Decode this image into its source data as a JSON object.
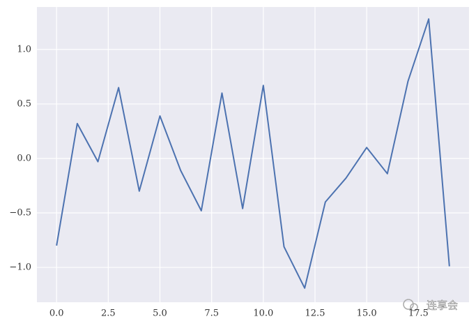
{
  "chart_data": {
    "type": "line",
    "x": [
      0,
      1,
      2,
      3,
      4,
      5,
      6,
      7,
      8,
      9,
      10,
      11,
      12,
      13,
      14,
      15,
      16,
      17,
      18,
      19
    ],
    "series": [
      {
        "color": "#4c72b0",
        "values": [
          -0.8,
          0.32,
          -0.03,
          0.65,
          -0.3,
          0.39,
          -0.11,
          -0.48,
          0.6,
          -0.46,
          0.67,
          -0.81,
          -1.19,
          -0.4,
          -0.18,
          0.1,
          -0.14,
          0.71,
          1.28,
          -0.99
        ]
      }
    ],
    "xlim": [
      -0.95,
      19.95
    ],
    "xticks": [
      {
        "value": 0,
        "label": "0.0"
      },
      2.5,
      {
        "value": 5,
        "label": "5.0"
      },
      7.5,
      {
        "value": 10,
        "label": "10.0"
      },
      12.5,
      {
        "value": 15,
        "label": "15.0"
      },
      17.5
    ],
    "ylim": [
      -1.32,
      1.39
    ],
    "yticks": [
      {
        "value": -1,
        "label": "−1.0"
      },
      {
        "value": -0.5,
        "label": "−0.5"
      },
      {
        "value": 0,
        "label": "0.0"
      },
      {
        "value": 0.5,
        "label": "0.5"
      },
      {
        "value": 1,
        "label": "1.0"
      }
    ],
    "grid": true,
    "background": "#eaeaf2",
    "watermark": "连享会"
  }
}
